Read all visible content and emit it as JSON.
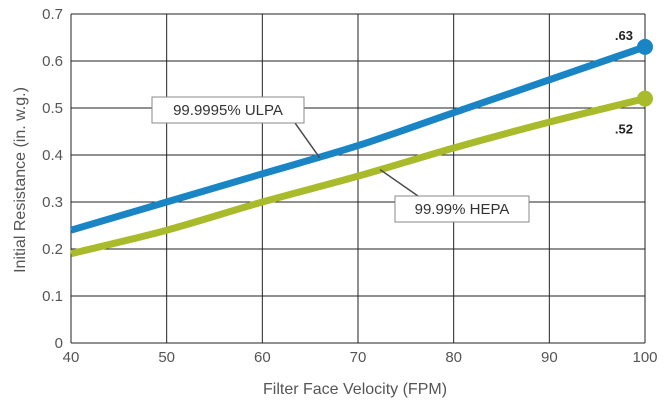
{
  "chart_data": {
    "type": "line",
    "title": "",
    "xlabel": "Filter Face Velocity (FPM)",
    "ylabel": "Initial Resistance (in. w.g.)",
    "xlim": [
      40,
      100
    ],
    "ylim": [
      0,
      0.7
    ],
    "x_ticks": [
      "40",
      "50",
      "60",
      "70",
      "80",
      "90",
      "100"
    ],
    "y_ticks": [
      "0",
      "0.1",
      "0.2",
      "0.3",
      "0.4",
      "0.5",
      "0.6",
      "0.7"
    ],
    "grid": true,
    "series": [
      {
        "name": "99.9995% ULPA",
        "color": "#1a85c5",
        "x": [
          40,
          50,
          60,
          70,
          80,
          90,
          100
        ],
        "y": [
          0.24,
          0.3,
          0.36,
          0.42,
          0.49,
          0.56,
          0.63
        ],
        "end_label": ".63"
      },
      {
        "name": "99.99% HEPA",
        "color": "#a9ba2a",
        "x": [
          40,
          50,
          60,
          70,
          80,
          90,
          100
        ],
        "y": [
          0.19,
          0.24,
          0.3,
          0.355,
          0.415,
          0.47,
          0.52
        ],
        "end_label": ".52"
      }
    ]
  }
}
